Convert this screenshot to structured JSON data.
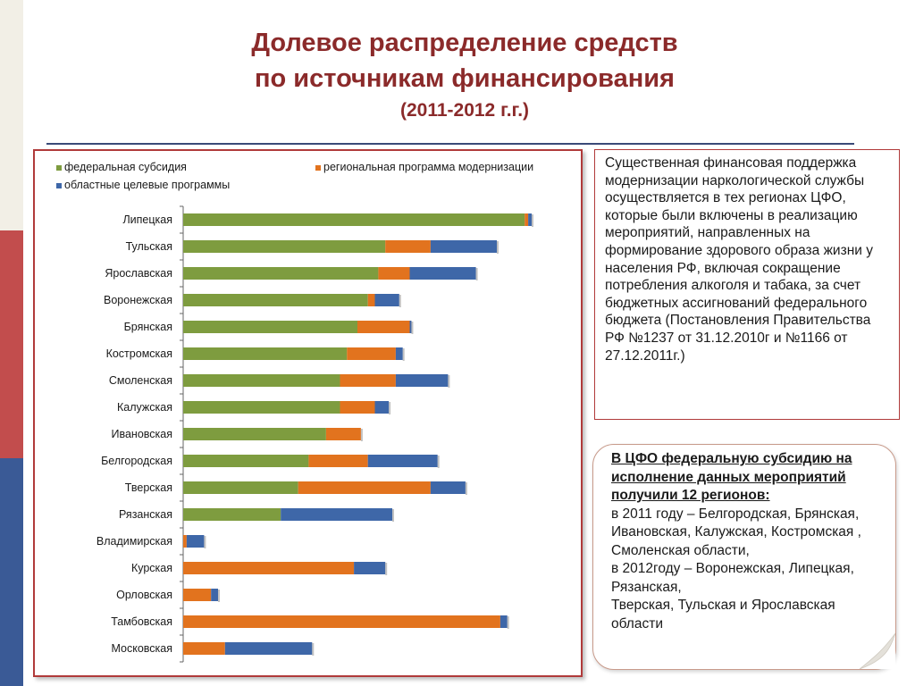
{
  "title": {
    "line1": "Долевое распределение средств",
    "line2": "по источникам финансирования",
    "line3": "(2011-2012 г.г.)"
  },
  "colors": {
    "accent_title": "#8b2a2a",
    "federal": "#7e9c3f",
    "regional": "#e2731e",
    "oblast": "#3e67a8"
  },
  "chart_data": {
    "type": "bar",
    "orientation": "horizontal",
    "stacked": true,
    "legend_position": "top",
    "grid": false,
    "xlim": [
      0,
      100
    ],
    "categories": [
      "Липецкая",
      "Тульская",
      "Ярославская",
      "Воронежская",
      "Брянская",
      "Костромская",
      "Смоленская",
      "Калужская",
      "Ивановская",
      "Белгородская",
      "Тверская",
      "Рязанская",
      "Владимирская",
      "Курская",
      "Орловская",
      "Тамбовская",
      "Московская"
    ],
    "series": [
      {
        "name": "федеральная субсидия",
        "color": "#7e9c3f",
        "values": [
          98,
          58,
          56,
          53,
          50,
          47,
          45,
          45,
          41,
          36,
          33,
          28,
          0,
          0,
          0,
          0,
          0
        ]
      },
      {
        "name": "региональная программа модернизации",
        "color": "#e2731e",
        "values": [
          1,
          13,
          9,
          2,
          15,
          14,
          16,
          10,
          10,
          17,
          38,
          0,
          1,
          49,
          8,
          91,
          12
        ]
      },
      {
        "name": "областные целевые программы",
        "color": "#3e67a8",
        "values": [
          1,
          19,
          19,
          7,
          0.5,
          2,
          15,
          4,
          0,
          20,
          10,
          32,
          5,
          9,
          2,
          2,
          25
        ]
      }
    ]
  },
  "info_box": {
    "text": "Существенная финансовая поддержка модернизации наркологической службы осуществляется в тех регионах ЦФО, которые были включены в реализацию мероприятий, направленных на формирование здорового образа жизни у населения РФ, включая сокращение потребления алкоголя и табака, за счет бюджетных ассигнований федерального бюджета (Постановления Правительства РФ №1237 от 31.12.2010г и  №1166 от 27.12.2011г.)"
  },
  "note_box": {
    "heading": "В ЦФО федеральную субсидию на исполнение данных мероприятий получили 12 регионов:",
    "line1": "в 2011 году – Белгородская, Брянская, Ивановская, Калужская, Костромская , Смоленская области,",
    "line2": "в 2012году – Воронежская, Липецкая, Рязанская,",
    "line3": "Тверская, Тульская и Ярославская области"
  }
}
